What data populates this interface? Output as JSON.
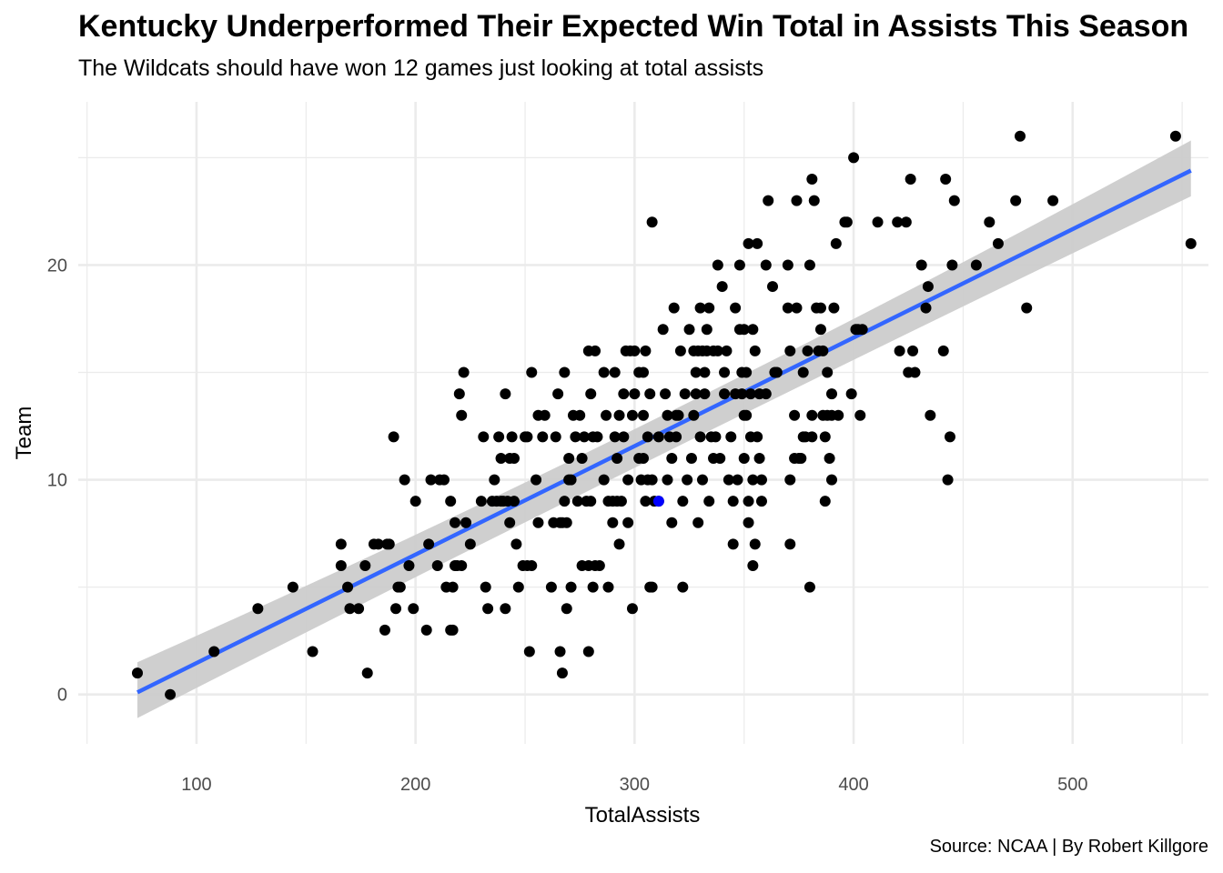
{
  "chart_data": {
    "type": "scatter",
    "title": "Kentucky Underperformed Their Expected Win Total in Assists This Season",
    "subtitle": "The Wildcats should have won 12 games just looking at total assists",
    "caption": "Source: NCAA | By Robert Killgore",
    "xlabel": "TotalAssists",
    "ylabel": "Team",
    "xlim": [
      46,
      562
    ],
    "ylim": [
      -2.3,
      27.6
    ],
    "x_ticks": [
      100,
      200,
      300,
      400,
      500
    ],
    "y_ticks": [
      0,
      10,
      20
    ],
    "grid": true,
    "colors": {
      "points": "#000000",
      "highlight": "#0000ff",
      "fit_line": "#3366ff",
      "ribbon": "#cccccc",
      "grid": "#ebebeb"
    },
    "regression": {
      "method": "lm",
      "start": [
        73,
        0.1
      ],
      "end": [
        554,
        24.4
      ],
      "ci_lower": [
        [
          73,
          -1.1
        ],
        [
          311,
          11.3
        ],
        [
          554,
          23.2
        ]
      ],
      "ci_upper": [
        [
          73,
          1.5
        ],
        [
          311,
          12.3
        ],
        [
          554,
          25.8
        ]
      ]
    },
    "highlight_point": {
      "x": 311,
      "y": 9
    },
    "points": [
      [
        73,
        1
      ],
      [
        88,
        0
      ],
      [
        108,
        2
      ],
      [
        128,
        4
      ],
      [
        144,
        5
      ],
      [
        153,
        2
      ],
      [
        166,
        7
      ],
      [
        166,
        6
      ],
      [
        169,
        5
      ],
      [
        170,
        4
      ],
      [
        174,
        4
      ],
      [
        177,
        6
      ],
      [
        178,
        1
      ],
      [
        181,
        7
      ],
      [
        183,
        7
      ],
      [
        186,
        3
      ],
      [
        187,
        7
      ],
      [
        188,
        7
      ],
      [
        190,
        12
      ],
      [
        191,
        4
      ],
      [
        192,
        5
      ],
      [
        193,
        5
      ],
      [
        195,
        10
      ],
      [
        197,
        6
      ],
      [
        199,
        4
      ],
      [
        200,
        9
      ],
      [
        205,
        3
      ],
      [
        206,
        7
      ],
      [
        207,
        10
      ],
      [
        210,
        6
      ],
      [
        211,
        10
      ],
      [
        213,
        10
      ],
      [
        214,
        5
      ],
      [
        216,
        9
      ],
      [
        216,
        3
      ],
      [
        217,
        5
      ],
      [
        217,
        3
      ],
      [
        218,
        6
      ],
      [
        218,
        8
      ],
      [
        219,
        6
      ],
      [
        220,
        14
      ],
      [
        221,
        6
      ],
      [
        221,
        13
      ],
      [
        222,
        15
      ],
      [
        223,
        8
      ],
      [
        225,
        7
      ],
      [
        230,
        9
      ],
      [
        231,
        12
      ],
      [
        232,
        5
      ],
      [
        233,
        4
      ],
      [
        235,
        9
      ],
      [
        236,
        10
      ],
      [
        237,
        9
      ],
      [
        238,
        12
      ],
      [
        239,
        11
      ],
      [
        239,
        9
      ],
      [
        240,
        9
      ],
      [
        241,
        4
      ],
      [
        241,
        14
      ],
      [
        242,
        9
      ],
      [
        243,
        8
      ],
      [
        243,
        11
      ],
      [
        244,
        12
      ],
      [
        245,
        9
      ],
      [
        245,
        11
      ],
      [
        246,
        7
      ],
      [
        247,
        5
      ],
      [
        249,
        6
      ],
      [
        250,
        12
      ],
      [
        251,
        12
      ],
      [
        251,
        6
      ],
      [
        252,
        2
      ],
      [
        253,
        6
      ],
      [
        253,
        15
      ],
      [
        255,
        10
      ],
      [
        256,
        13
      ],
      [
        256,
        8
      ],
      [
        258,
        12
      ],
      [
        259,
        13
      ],
      [
        262,
        5
      ],
      [
        263,
        8
      ],
      [
        264,
        12
      ],
      [
        265,
        14
      ],
      [
        266,
        8
      ],
      [
        266,
        2
      ],
      [
        267,
        8
      ],
      [
        267,
        1
      ],
      [
        268,
        9
      ],
      [
        268,
        15
      ],
      [
        269,
        8
      ],
      [
        269,
        4
      ],
      [
        270,
        10
      ],
      [
        270,
        11
      ],
      [
        271,
        10
      ],
      [
        271,
        5
      ],
      [
        272,
        13
      ],
      [
        273,
        12
      ],
      [
        274,
        9
      ],
      [
        275,
        13
      ],
      [
        276,
        11
      ],
      [
        276,
        6
      ],
      [
        277,
        12
      ],
      [
        278,
        9
      ],
      [
        279,
        16
      ],
      [
        279,
        6
      ],
      [
        279,
        2
      ],
      [
        280,
        14
      ],
      [
        280,
        9
      ],
      [
        281,
        12
      ],
      [
        281,
        5
      ],
      [
        282,
        6
      ],
      [
        282,
        16
      ],
      [
        283,
        12
      ],
      [
        284,
        6
      ],
      [
        286,
        15
      ],
      [
        286,
        10
      ],
      [
        287,
        13
      ],
      [
        288,
        9
      ],
      [
        288,
        5
      ],
      [
        290,
        9
      ],
      [
        290,
        8
      ],
      [
        291,
        15
      ],
      [
        291,
        12
      ],
      [
        292,
        9
      ],
      [
        292,
        11
      ],
      [
        293,
        13
      ],
      [
        293,
        7
      ],
      [
        294,
        9
      ],
      [
        295,
        14
      ],
      [
        295,
        12
      ],
      [
        296,
        16
      ],
      [
        297,
        10
      ],
      [
        297,
        8
      ],
      [
        298,
        16
      ],
      [
        299,
        13
      ],
      [
        299,
        4
      ],
      [
        300,
        16
      ],
      [
        300,
        14
      ],
      [
        302,
        15
      ],
      [
        302,
        11
      ],
      [
        303,
        10
      ],
      [
        304,
        15
      ],
      [
        304,
        11
      ],
      [
        304,
        13
      ],
      [
        305,
        9
      ],
      [
        305,
        16
      ],
      [
        306,
        10
      ],
      [
        306,
        12
      ],
      [
        307,
        14
      ],
      [
        307,
        5
      ],
      [
        308,
        10
      ],
      [
        308,
        22
      ],
      [
        308,
        5
      ],
      [
        309,
        9
      ],
      [
        311,
        12
      ],
      [
        311,
        9
      ],
      [
        313,
        17
      ],
      [
        314,
        14
      ],
      [
        315,
        13
      ],
      [
        315,
        10
      ],
      [
        316,
        12
      ],
      [
        317,
        11
      ],
      [
        317,
        8
      ],
      [
        318,
        18
      ],
      [
        319,
        13
      ],
      [
        319,
        12
      ],
      [
        320,
        13
      ],
      [
        321,
        16
      ],
      [
        322,
        5
      ],
      [
        322,
        9
      ],
      [
        323,
        14
      ],
      [
        324,
        10
      ],
      [
        325,
        17
      ],
      [
        326,
        11
      ],
      [
        327,
        13
      ],
      [
        327,
        16
      ],
      [
        328,
        15
      ],
      [
        328,
        14
      ],
      [
        329,
        8
      ],
      [
        329,
        16
      ],
      [
        330,
        18
      ],
      [
        330,
        12
      ],
      [
        331,
        16
      ],
      [
        331,
        10
      ],
      [
        332,
        15
      ],
      [
        332,
        14
      ],
      [
        333,
        17
      ],
      [
        333,
        16
      ],
      [
        334,
        18
      ],
      [
        334,
        9
      ],
      [
        335,
        12
      ],
      [
        336,
        16
      ],
      [
        336,
        11
      ],
      [
        337,
        12
      ],
      [
        338,
        20
      ],
      [
        338,
        16
      ],
      [
        339,
        11
      ],
      [
        340,
        19
      ],
      [
        341,
        15
      ],
      [
        341,
        14
      ],
      [
        342,
        16
      ],
      [
        343,
        10
      ],
      [
        344,
        12
      ],
      [
        345,
        7
      ],
      [
        345,
        9
      ],
      [
        346,
        18
      ],
      [
        346,
        14
      ],
      [
        347,
        10
      ],
      [
        348,
        20
      ],
      [
        348,
        17
      ],
      [
        349,
        15
      ],
      [
        349,
        14
      ],
      [
        350,
        17
      ],
      [
        350,
        13
      ],
      [
        350,
        11
      ],
      [
        351,
        13
      ],
      [
        351,
        15
      ],
      [
        352,
        21
      ],
      [
        352,
        8
      ],
      [
        352,
        9
      ],
      [
        353,
        14
      ],
      [
        353,
        12
      ],
      [
        354,
        10
      ],
      [
        354,
        6
      ],
      [
        354,
        17
      ],
      [
        355,
        16
      ],
      [
        355,
        7
      ],
      [
        356,
        12
      ],
      [
        356,
        21
      ],
      [
        357,
        14
      ],
      [
        357,
        11
      ],
      [
        358,
        9
      ],
      [
        358,
        10
      ],
      [
        360,
        20
      ],
      [
        360,
        14
      ],
      [
        361,
        23
      ],
      [
        363,
        19
      ],
      [
        364,
        15
      ],
      [
        365,
        15
      ],
      [
        370,
        20
      ],
      [
        370,
        18
      ],
      [
        371,
        16
      ],
      [
        371,
        7
      ],
      [
        371,
        10
      ],
      [
        373,
        13
      ],
      [
        373,
        11
      ],
      [
        374,
        23
      ],
      [
        374,
        18
      ],
      [
        375,
        11
      ],
      [
        376,
        11
      ],
      [
        377,
        12
      ],
      [
        377,
        15
      ],
      [
        378,
        12
      ],
      [
        379,
        16
      ],
      [
        380,
        20
      ],
      [
        380,
        5
      ],
      [
        381,
        24
      ],
      [
        381,
        13
      ],
      [
        381,
        12
      ],
      [
        382,
        23
      ],
      [
        383,
        18
      ],
      [
        384,
        16
      ],
      [
        385,
        18
      ],
      [
        385,
        17
      ],
      [
        386,
        16
      ],
      [
        386,
        13
      ],
      [
        387,
        9
      ],
      [
        387,
        12
      ],
      [
        388,
        15
      ],
      [
        388,
        13
      ],
      [
        389,
        11
      ],
      [
        390,
        14
      ],
      [
        390,
        13
      ],
      [
        390,
        10
      ],
      [
        391,
        18
      ],
      [
        392,
        21
      ],
      [
        393,
        13
      ],
      [
        396,
        22
      ],
      [
        397,
        22
      ],
      [
        399,
        14
      ],
      [
        400,
        25
      ],
      [
        401,
        17
      ],
      [
        402,
        17
      ],
      [
        403,
        13
      ],
      [
        404,
        17
      ],
      [
        411,
        22
      ],
      [
        420,
        22
      ],
      [
        421,
        16
      ],
      [
        424,
        22
      ],
      [
        425,
        15
      ],
      [
        426,
        24
      ],
      [
        427,
        16
      ],
      [
        428,
        15
      ],
      [
        431,
        20
      ],
      [
        433,
        18
      ],
      [
        434,
        19
      ],
      [
        435,
        13
      ],
      [
        441,
        16
      ],
      [
        442,
        24
      ],
      [
        443,
        10
      ],
      [
        444,
        12
      ],
      [
        445,
        20
      ],
      [
        446,
        23
      ],
      [
        456,
        20
      ],
      [
        462,
        22
      ],
      [
        466,
        21
      ],
      [
        474,
        23
      ],
      [
        476,
        26
      ],
      [
        479,
        18
      ],
      [
        491,
        23
      ],
      [
        547,
        26
      ],
      [
        554,
        21
      ]
    ]
  }
}
